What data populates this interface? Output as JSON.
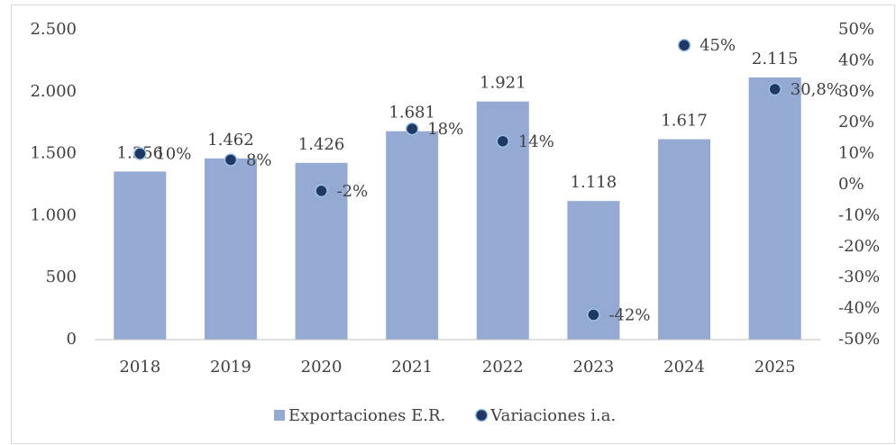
{
  "chart_data": {
    "type": "bar",
    "categories": [
      "2018",
      "2019",
      "2020",
      "2021",
      "2022",
      "2023",
      "2024",
      "2025"
    ],
    "series": [
      {
        "name": "Exportaciones E.R.",
        "type": "bar",
        "color": "#94aad2",
        "values": [
          1356,
          1462,
          1426,
          1681,
          1921,
          1118,
          1617,
          2115
        ],
        "value_labels": [
          "1.356",
          "1.462",
          "1.426",
          "1.681",
          "1.921",
          "1.118",
          "1.617",
          "2.115"
        ]
      },
      {
        "name": "Variaciones i.a.",
        "type": "scatter",
        "axis": "y2",
        "color": "#1f3864",
        "values": [
          10,
          8,
          -2,
          18,
          14,
          -42,
          45,
          30.8
        ],
        "value_labels": [
          "10%",
          "8%",
          "-2%",
          "18%",
          "14%",
          "-42%",
          "45%",
          "30,8%"
        ]
      }
    ],
    "ylim": [
      0,
      2500
    ],
    "yticks": [
      0,
      500,
      {
        "value": 1000,
        "label": "1.000"
      },
      {
        "value": 1500,
        "label": "1.500"
      },
      {
        "value": 2000,
        "label": "2.000"
      },
      {
        "value": 2500,
        "label": "2.500"
      }
    ],
    "y2lim": [
      -50,
      50
    ],
    "y2ticks": [
      {
        "value": -50,
        "label": "-50%"
      },
      {
        "value": -40,
        "label": "-40%"
      },
      {
        "value": -30,
        "label": "-30%"
      },
      {
        "value": -20,
        "label": "-20%"
      },
      {
        "value": -10,
        "label": "-10%"
      },
      {
        "value": 0,
        "label": "0%"
      },
      {
        "value": 10,
        "label": "10%"
      },
      {
        "value": 20,
        "label": "20%"
      },
      {
        "value": 30,
        "label": "30%"
      },
      {
        "value": 40,
        "label": "40%"
      },
      {
        "value": 50,
        "label": "50%"
      }
    ],
    "legend": "bottom"
  }
}
